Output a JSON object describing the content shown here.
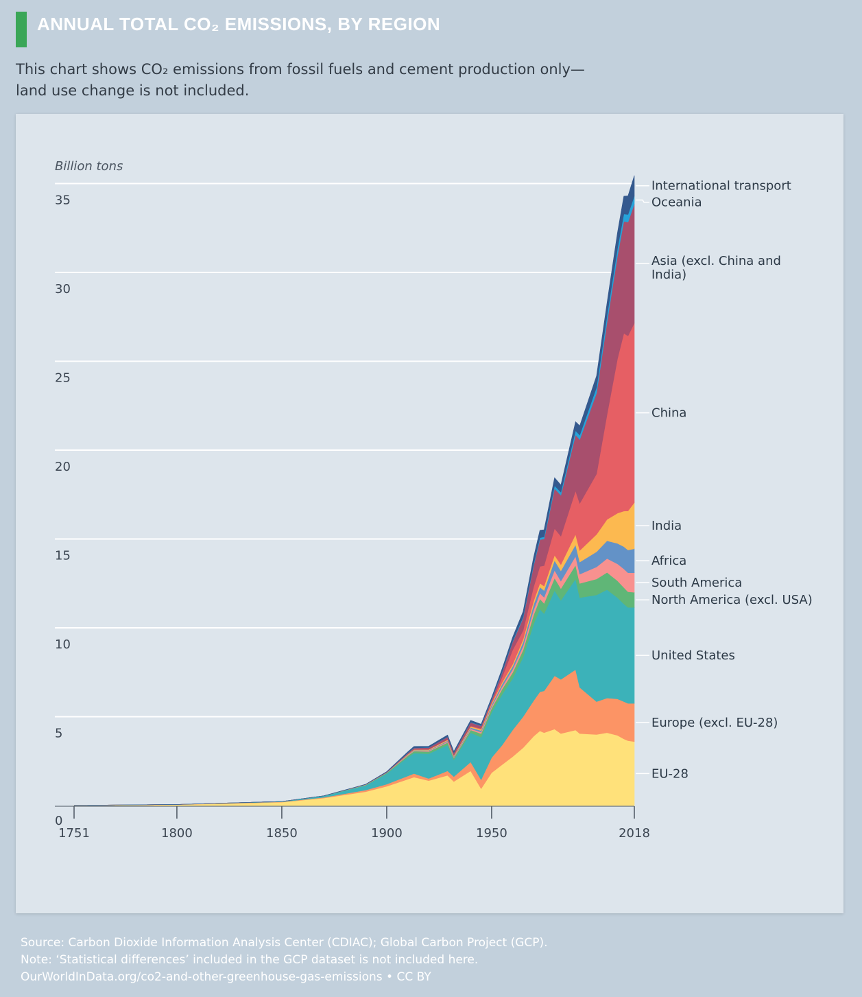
{
  "header": {
    "title": "ANNUAL TOTAL CO₂ EMISSIONS, BY REGION",
    "subtitle_line1": "This chart shows CO₂ emissions from fossil fuels and cement production only—",
    "subtitle_line2": "land use change is not included."
  },
  "footer": {
    "line1": "Source: Carbon Dioxide Information Analysis Center (CDIAC); Global Carbon Project (GCP).",
    "line2": "Note: ‘Statistical differences’ included in the GCP dataset is not included here.",
    "line3": "OurWorldInData.org/co2-and-other-greenhouse-gas-emissions • CC BY"
  },
  "colors": {
    "title_accent": "#3aa657",
    "background": "#c2d0dc",
    "panel": "#dde5ec"
  },
  "chart_data": {
    "type": "area",
    "stacked": true,
    "title": "ANNUAL TOTAL CO₂ EMISSIONS, BY REGION",
    "ylabel": "Billion tons",
    "xlabel": "",
    "ylim": [
      0,
      35
    ],
    "xlim": [
      1751,
      2018
    ],
    "x_ticks": [
      "1751",
      "1800",
      "1850",
      "1900",
      "1950",
      "2018"
    ],
    "y_ticks": [
      "0",
      "5",
      "10",
      "15",
      "20",
      "25",
      "30",
      "35"
    ],
    "grid": true,
    "legend": "right-side labels",
    "x": [
      1751,
      1800,
      1850,
      1870,
      1890,
      1900,
      1910,
      1913,
      1920,
      1929,
      1932,
      1940,
      1945,
      1950,
      1955,
      1960,
      1965,
      1970,
      1973,
      1975,
      1980,
      1983,
      1990,
      1992,
      2000,
      2005,
      2010,
      2013,
      2015,
      2018
    ],
    "series": [
      {
        "name": "EU-28",
        "color": "#ffe17a",
        "values": [
          0.01,
          0.05,
          0.19,
          0.42,
          0.78,
          1.08,
          1.48,
          1.6,
          1.4,
          1.7,
          1.35,
          1.95,
          0.95,
          1.85,
          2.3,
          2.75,
          3.25,
          3.9,
          4.2,
          4.1,
          4.3,
          4.05,
          4.25,
          4.05,
          4.0,
          4.1,
          3.95,
          3.75,
          3.65,
          3.6
        ]
      },
      {
        "name": "Europe (excl. EU-28)",
        "color": "#fc9465",
        "values": [
          0.0,
          0.01,
          0.02,
          0.04,
          0.09,
          0.12,
          0.18,
          0.2,
          0.12,
          0.25,
          0.28,
          0.5,
          0.5,
          0.85,
          1.1,
          1.5,
          1.75,
          2.0,
          2.2,
          2.35,
          3.0,
          3.05,
          3.4,
          2.6,
          1.85,
          1.95,
          2.05,
          2.1,
          2.1,
          2.15
        ]
      },
      {
        "name": "United States",
        "color": "#3cb2b9",
        "values": [
          0.0,
          0.0,
          0.02,
          0.08,
          0.27,
          0.6,
          1.05,
          1.15,
          1.4,
          1.45,
          0.95,
          1.65,
          2.4,
          2.55,
          2.85,
          2.9,
          3.35,
          4.3,
          4.65,
          4.35,
          4.8,
          4.45,
          5.1,
          5.05,
          6.0,
          6.1,
          5.7,
          5.5,
          5.4,
          5.4
        ]
      },
      {
        "name": "North America (excl. USA)",
        "color": "#60b677",
        "values": [
          0.0,
          0.0,
          0.0,
          0.01,
          0.02,
          0.04,
          0.09,
          0.11,
          0.12,
          0.15,
          0.1,
          0.15,
          0.2,
          0.22,
          0.3,
          0.33,
          0.4,
          0.52,
          0.58,
          0.58,
          0.7,
          0.66,
          0.78,
          0.8,
          0.9,
          0.97,
          0.95,
          0.92,
          0.88,
          0.85
        ]
      },
      {
        "name": "South America",
        "color": "#f8918f",
        "values": [
          0.0,
          0.0,
          0.0,
          0.0,
          0.01,
          0.01,
          0.03,
          0.03,
          0.04,
          0.05,
          0.04,
          0.07,
          0.08,
          0.1,
          0.14,
          0.18,
          0.22,
          0.28,
          0.32,
          0.34,
          0.44,
          0.42,
          0.5,
          0.52,
          0.68,
          0.78,
          0.95,
          1.05,
          1.07,
          1.1
        ]
      },
      {
        "name": "Africa",
        "color": "#6392c7",
        "values": [
          0.0,
          0.0,
          0.0,
          0.0,
          0.0,
          0.01,
          0.02,
          0.03,
          0.03,
          0.05,
          0.05,
          0.07,
          0.09,
          0.1,
          0.14,
          0.17,
          0.22,
          0.3,
          0.34,
          0.38,
          0.55,
          0.58,
          0.65,
          0.68,
          0.85,
          1.0,
          1.15,
          1.25,
          1.28,
          1.35
        ]
      },
      {
        "name": "India",
        "color": "#fcb950",
        "values": [
          0.0,
          0.0,
          0.0,
          0.0,
          0.01,
          0.01,
          0.03,
          0.03,
          0.04,
          0.05,
          0.04,
          0.06,
          0.07,
          0.08,
          0.1,
          0.12,
          0.16,
          0.2,
          0.22,
          0.25,
          0.3,
          0.35,
          0.58,
          0.65,
          0.98,
          1.2,
          1.7,
          2.0,
          2.2,
          2.6
        ]
      },
      {
        "name": "China",
        "color": "#e65f64",
        "values": [
          0.0,
          0.0,
          0.0,
          0.0,
          0.0,
          0.0,
          0.01,
          0.01,
          0.01,
          0.02,
          0.02,
          0.03,
          0.05,
          0.08,
          0.3,
          0.8,
          0.5,
          0.8,
          0.95,
          1.15,
          1.5,
          1.6,
          2.45,
          2.65,
          3.4,
          5.9,
          8.7,
          10.0,
          9.85,
          10.1
        ]
      },
      {
        "name": "Asia (excl. China and India)",
        "color": "#a84f6d",
        "values": [
          0.0,
          0.0,
          0.0,
          0.0,
          0.01,
          0.02,
          0.06,
          0.08,
          0.1,
          0.14,
          0.13,
          0.2,
          0.14,
          0.12,
          0.25,
          0.45,
          0.7,
          1.2,
          1.5,
          1.5,
          2.25,
          2.3,
          3.15,
          3.6,
          4.55,
          5.2,
          5.8,
          6.3,
          6.4,
          6.7
        ]
      },
      {
        "name": "Oceania",
        "color": "#26a3d9",
        "values": [
          0.0,
          0.0,
          0.0,
          0.0,
          0.0,
          0.0,
          0.01,
          0.01,
          0.01,
          0.01,
          0.01,
          0.02,
          0.02,
          0.03,
          0.04,
          0.05,
          0.07,
          0.09,
          0.11,
          0.12,
          0.16,
          0.18,
          0.24,
          0.25,
          0.32,
          0.37,
          0.41,
          0.42,
          0.43,
          0.45
        ]
      },
      {
        "name": "International transport",
        "color": "#34598e",
        "values": [
          0.0,
          0.0,
          0.0,
          0.0,
          0.01,
          0.02,
          0.06,
          0.08,
          0.07,
          0.1,
          0.08,
          0.1,
          0.08,
          0.1,
          0.18,
          0.22,
          0.3,
          0.38,
          0.42,
          0.4,
          0.45,
          0.4,
          0.5,
          0.52,
          0.65,
          0.72,
          0.9,
          1.0,
          1.05,
          1.15
        ]
      }
    ]
  }
}
